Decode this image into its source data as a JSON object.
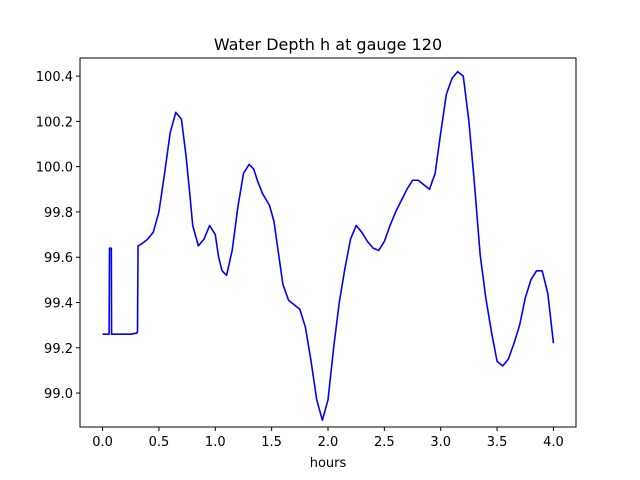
{
  "chart_data": {
    "type": "line",
    "title": "Water Depth h at gauge 120",
    "xlabel": "hours",
    "ylabel": "",
    "xlim": [
      -0.2,
      4.2
    ],
    "ylim": [
      98.85,
      100.48
    ],
    "xticks": [
      0.0,
      0.5,
      1.0,
      1.5,
      2.0,
      2.5,
      3.0,
      3.5,
      4.0
    ],
    "xtick_labels": [
      "0.0",
      "0.5",
      "1.0",
      "1.5",
      "2.0",
      "2.5",
      "3.0",
      "3.5",
      "4.0"
    ],
    "yticks": [
      99.0,
      99.2,
      99.4,
      99.6,
      99.8,
      100.0,
      100.2,
      100.4
    ],
    "ytick_labels": [
      "99.0",
      "99.2",
      "99.4",
      "99.6",
      "99.8",
      "100.0",
      "100.2",
      "100.4"
    ],
    "grid": false,
    "series": [
      {
        "color": "#0000ff",
        "x": [
          0.0,
          0.055,
          0.058,
          0.062,
          0.067,
          0.072,
          0.075,
          0.078,
          0.08,
          0.15,
          0.25,
          0.305,
          0.31,
          0.315,
          0.35,
          0.4,
          0.45,
          0.5,
          0.55,
          0.6,
          0.65,
          0.7,
          0.74,
          0.77,
          0.8,
          0.85,
          0.9,
          0.95,
          1.0,
          1.03,
          1.06,
          1.1,
          1.15,
          1.2,
          1.25,
          1.3,
          1.34,
          1.38,
          1.42,
          1.48,
          1.52,
          1.56,
          1.6,
          1.65,
          1.7,
          1.75,
          1.8,
          1.85,
          1.9,
          1.95,
          2.0,
          2.05,
          2.1,
          2.15,
          2.2,
          2.25,
          2.3,
          2.35,
          2.4,
          2.45,
          2.5,
          2.55,
          2.6,
          2.65,
          2.7,
          2.75,
          2.8,
          2.85,
          2.9,
          2.95,
          3.0,
          3.05,
          3.1,
          3.15,
          3.2,
          3.25,
          3.3,
          3.35,
          3.4,
          3.45,
          3.5,
          3.55,
          3.6,
          3.65,
          3.7,
          3.75,
          3.8,
          3.85,
          3.9,
          3.95,
          4.0
        ],
        "y": [
          99.26,
          99.26,
          99.26,
          99.64,
          99.64,
          99.64,
          99.64,
          99.64,
          99.26,
          99.26,
          99.26,
          99.265,
          99.27,
          99.65,
          99.66,
          99.68,
          99.71,
          99.8,
          99.97,
          100.15,
          100.24,
          100.21,
          100.05,
          99.9,
          99.74,
          99.65,
          99.68,
          99.74,
          99.7,
          99.6,
          99.54,
          99.52,
          99.63,
          99.82,
          99.97,
          100.01,
          99.99,
          99.93,
          99.88,
          99.83,
          99.76,
          99.62,
          99.48,
          99.41,
          99.39,
          99.37,
          99.29,
          99.14,
          98.97,
          98.88,
          98.97,
          99.2,
          99.4,
          99.55,
          99.68,
          99.74,
          99.71,
          99.67,
          99.64,
          99.63,
          99.67,
          99.74,
          99.8,
          99.85,
          99.9,
          99.94,
          99.94,
          99.92,
          99.9,
          99.97,
          100.15,
          100.32,
          100.39,
          100.42,
          100.4,
          100.2,
          99.92,
          99.61,
          99.42,
          99.27,
          99.14,
          99.12,
          99.15,
          99.22,
          99.3,
          99.42,
          99.5,
          99.54,
          99.54,
          99.44,
          99.22
        ]
      }
    ]
  }
}
